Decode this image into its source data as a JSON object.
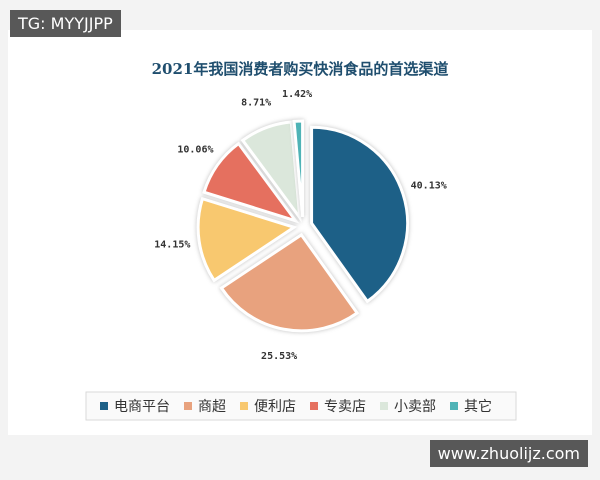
{
  "chart_data": {
    "type": "pie",
    "title": "2021年我国消费者购买快消食品的首选渠道",
    "categories": [
      "电商平台",
      "商超",
      "便利店",
      "专卖店",
      "小卖部",
      "其它"
    ],
    "values": [
      40.13,
      25.53,
      14.15,
      10.06,
      8.71,
      1.42
    ],
    "value_labels": [
      "40.13%",
      "25.53%",
      "14.15%",
      "10.06%",
      "8.71%",
      "1.42%"
    ],
    "colors": [
      "#1d6087",
      "#e8a27e",
      "#f8c86f",
      "#e5705f",
      "#dbe7db",
      "#4fb3b6"
    ],
    "legend": "bottom"
  },
  "watermarks": [
    "TG: MYYJJPP",
    "www.zhuolijz.com"
  ]
}
